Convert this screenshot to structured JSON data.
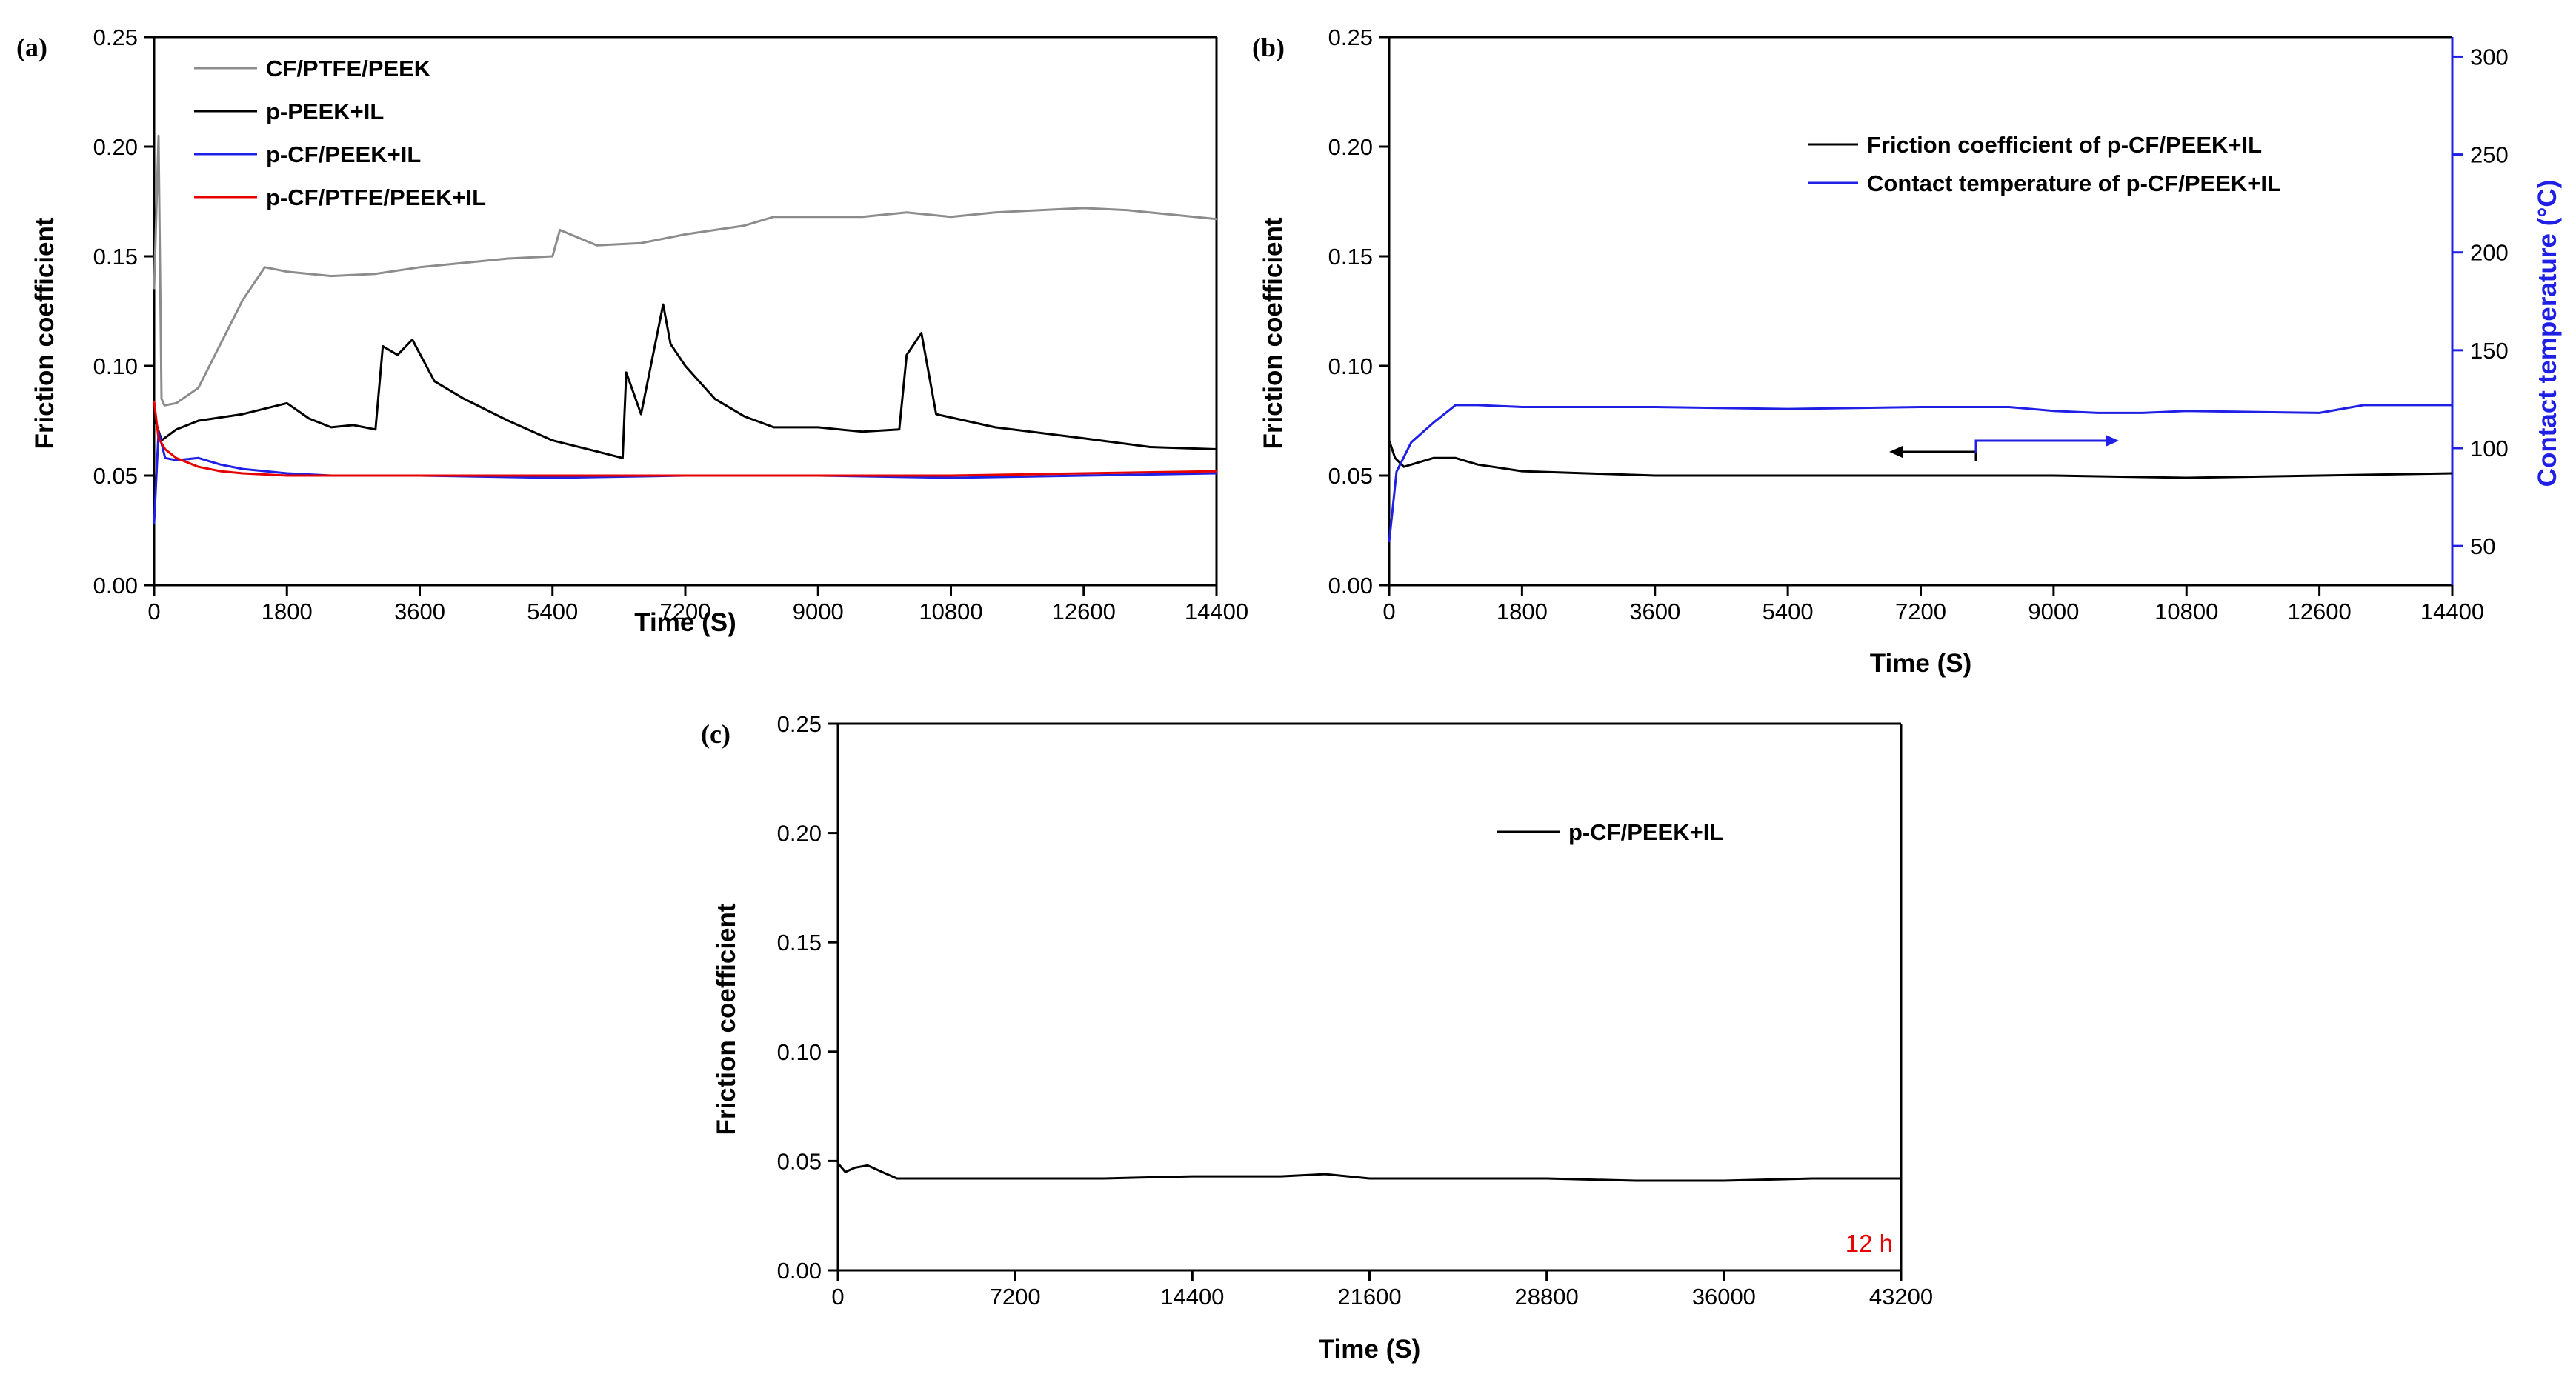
{
  "chart_data": [
    {
      "panel": "(a)",
      "type": "line",
      "xlabel": "Time (S)",
      "ylabel": "Friction coefficient",
      "xlim": [
        0,
        14400
      ],
      "ylim": [
        0,
        0.25
      ],
      "xticks": [
        "0",
        "1800",
        "3600",
        "5400",
        "7200",
        "9000",
        "10800",
        "12600",
        "14400"
      ],
      "yticks": [
        "0.00",
        "0.05",
        "0.10",
        "0.15",
        "0.20",
        "0.25"
      ],
      "legend_position": "top-left",
      "series": [
        {
          "name": "CF/PTFE/PEEK",
          "color": "#8c8c8c",
          "x": [
            0,
            60,
            100,
            140,
            300,
            600,
            900,
            1200,
            1500,
            1800,
            2400,
            3000,
            3600,
            4200,
            4800,
            5400,
            5500,
            6000,
            6600,
            7200,
            7600,
            8000,
            8400,
            9000,
            9600,
            10200,
            10800,
            11400,
            12000,
            12600,
            13200,
            13800,
            14400
          ],
          "y": [
            0.135,
            0.205,
            0.085,
            0.082,
            0.083,
            0.09,
            0.11,
            0.13,
            0.145,
            0.143,
            0.141,
            0.142,
            0.145,
            0.147,
            0.149,
            0.15,
            0.162,
            0.155,
            0.156,
            0.16,
            0.162,
            0.164,
            0.168,
            0.168,
            0.168,
            0.17,
            0.168,
            0.17,
            0.171,
            0.172,
            0.171,
            0.169,
            0.167
          ]
        },
        {
          "name": "p-PEEK+IL",
          "color": "#000000",
          "x": [
            0,
            100,
            300,
            600,
            1200,
            1800,
            2100,
            2400,
            2700,
            3000,
            3100,
            3300,
            3500,
            3800,
            4200,
            4800,
            5400,
            6000,
            6350,
            6400,
            6600,
            6900,
            7000,
            7200,
            7600,
            8000,
            8400,
            9000,
            9600,
            10100,
            10200,
            10400,
            10600,
            11400,
            12600,
            13500,
            14400
          ],
          "y": [
            0.077,
            0.066,
            0.071,
            0.075,
            0.078,
            0.083,
            0.076,
            0.072,
            0.073,
            0.071,
            0.109,
            0.105,
            0.112,
            0.093,
            0.085,
            0.075,
            0.066,
            0.061,
            0.058,
            0.097,
            0.078,
            0.128,
            0.11,
            0.1,
            0.085,
            0.077,
            0.072,
            0.072,
            0.07,
            0.071,
            0.105,
            0.115,
            0.078,
            0.072,
            0.067,
            0.063,
            0.062
          ]
        },
        {
          "name": "p-CF/PEEK+IL",
          "color": "#1f1fe6",
          "x": [
            0,
            60,
            150,
            300,
            600,
            900,
            1200,
            1800,
            2400,
            3600,
            5400,
            7200,
            9000,
            10800,
            12600,
            14400
          ],
          "y": [
            0.028,
            0.07,
            0.058,
            0.057,
            0.058,
            0.055,
            0.053,
            0.051,
            0.05,
            0.05,
            0.049,
            0.05,
            0.05,
            0.049,
            0.05,
            0.051
          ]
        },
        {
          "name": "p-CF/PTFE/PEEK+IL",
          "color": "#e60000",
          "x": [
            0,
            60,
            150,
            300,
            600,
            900,
            1200,
            1800,
            2400,
            3600,
            5400,
            7200,
            9000,
            10800,
            12600,
            14400
          ],
          "y": [
            0.084,
            0.067,
            0.062,
            0.058,
            0.054,
            0.052,
            0.051,
            0.05,
            0.05,
            0.05,
            0.05,
            0.05,
            0.05,
            0.05,
            0.051,
            0.052
          ]
        }
      ]
    },
    {
      "panel": "(b)",
      "type": "line",
      "xlabel": "Time (S)",
      "ylabel": "Friction coefficient",
      "y2label": "Contact temperature (°C)",
      "xlim": [
        0,
        14400
      ],
      "ylim": [
        0,
        0.25
      ],
      "y2lim": [
        30,
        310
      ],
      "xticks": [
        "0",
        "1800",
        "3600",
        "5400",
        "7200",
        "9000",
        "10800",
        "12600",
        "14400"
      ],
      "yticks": [
        "0.00",
        "0.05",
        "0.10",
        "0.15",
        "0.20",
        "0.25"
      ],
      "y2ticks": [
        "50",
        "100",
        "150",
        "200",
        "250",
        "300"
      ],
      "legend_position": "top-right",
      "series": [
        {
          "name": "Friction coefficient of p-CF/PEEK+IL",
          "color": "#000000",
          "axis": "left",
          "x": [
            0,
            80,
            200,
            400,
            600,
            900,
            1200,
            1800,
            3600,
            5400,
            7200,
            9000,
            10800,
            12600,
            14400
          ],
          "y": [
            0.066,
            0.058,
            0.054,
            0.056,
            0.058,
            0.058,
            0.055,
            0.052,
            0.05,
            0.05,
            0.05,
            0.05,
            0.049,
            0.05,
            0.051
          ]
        },
        {
          "name": "Contact temperature of p-CF/PEEK+IL",
          "color": "#1f1fe6",
          "axis": "right",
          "x": [
            0,
            100,
            300,
            600,
            900,
            1200,
            1800,
            3600,
            5400,
            7200,
            8400,
            9000,
            9600,
            10200,
            10800,
            12600,
            13200,
            14400
          ],
          "y": [
            52,
            88,
            103,
            113,
            122,
            122,
            121,
            121,
            120,
            121,
            121,
            119,
            118,
            118,
            119,
            118,
            122,
            122
          ]
        }
      ]
    },
    {
      "panel": "(c)",
      "type": "line",
      "xlabel": "Time (S)",
      "ylabel": "Friction coefficient",
      "xlim": [
        0,
        43200
      ],
      "ylim": [
        0,
        0.25
      ],
      "xticks": [
        "0",
        "7200",
        "14400",
        "21600",
        "28800",
        "36000",
        "43200"
      ],
      "yticks": [
        "0.00",
        "0.05",
        "0.10",
        "0.15",
        "0.20",
        "0.25"
      ],
      "legend_position": "top-right",
      "annotation": "12 h",
      "annotation_color": "#e60000",
      "series": [
        {
          "name": "p-CF/PEEK+IL",
          "color": "#000000",
          "x": [
            0,
            300,
            700,
            1200,
            1800,
            2400,
            3000,
            4000,
            7200,
            10800,
            14400,
            18000,
            19800,
            21600,
            25200,
            28800,
            32400,
            36000,
            39600,
            43200
          ],
          "y": [
            0.049,
            0.045,
            0.047,
            0.048,
            0.045,
            0.042,
            0.042,
            0.042,
            0.042,
            0.042,
            0.043,
            0.043,
            0.044,
            0.042,
            0.042,
            0.042,
            0.041,
            0.041,
            0.042,
            0.042
          ]
        }
      ]
    }
  ]
}
